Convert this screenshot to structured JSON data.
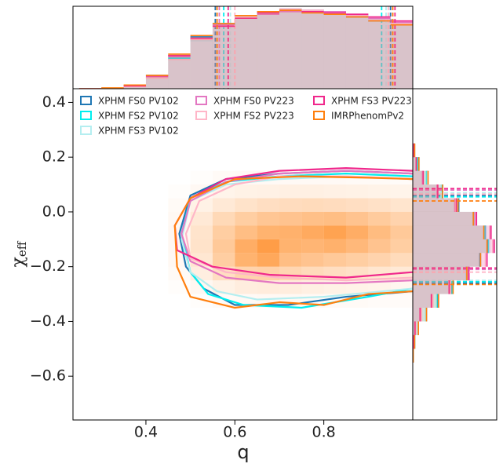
{
  "chart_data": {
    "type": "corner",
    "xlabel": "q",
    "ylabel": {
      "base": "χ",
      "sub": "eff"
    },
    "xlim": [
      0.236,
      1.0
    ],
    "ylim": [
      -0.76,
      0.45
    ],
    "xticks": [
      0.4,
      0.6,
      0.8
    ],
    "yticks": [
      0.4,
      0.2,
      {
        "value": 0,
        "label": "0.0"
      },
      {
        "value": -0.2,
        "label": "−0.2"
      },
      {
        "value": -0.4,
        "label": "−0.4"
      },
      {
        "value": -0.6,
        "label": "−0.6"
      }
    ],
    "top_ylim": [
      0,
      3.1
    ],
    "right_xlim": [
      0,
      5.2
    ],
    "q_bins": [
      0.25,
      0.3,
      0.35,
      0.4,
      0.45,
      0.5,
      0.55,
      0.6,
      0.65,
      0.7,
      0.75,
      0.8,
      0.85,
      0.9,
      0.95,
      1.0
    ],
    "chi_bins": [
      -0.55,
      -0.5,
      -0.45,
      -0.4,
      -0.35,
      -0.3,
      -0.25,
      -0.2,
      -0.15,
      -0.1,
      -0.05,
      0.0,
      0.05,
      0.1,
      0.15,
      0.2,
      0.25
    ],
    "density": {
      "color": "#ff7f0e",
      "q_edges": [
        0.45,
        0.5,
        0.55,
        0.6,
        0.65,
        0.7,
        0.75,
        0.8,
        0.85,
        0.9,
        0.95,
        1.0
      ],
      "chi_edges": [
        0.15,
        0.1,
        0.05,
        0.0,
        -0.05,
        -0.1,
        -0.15,
        -0.2,
        -0.25,
        -0.3,
        -0.35
      ],
      "values": [
        [
          0,
          0.02,
          0.04,
          0.05,
          0.05,
          0.05,
          0.05,
          0.05,
          0.04,
          0.04,
          0.03
        ],
        [
          0.02,
          0.06,
          0.1,
          0.12,
          0.13,
          0.14,
          0.14,
          0.13,
          0.12,
          0.11,
          0.1
        ],
        [
          0.04,
          0.12,
          0.2,
          0.26,
          0.3,
          0.32,
          0.33,
          0.32,
          0.3,
          0.27,
          0.24
        ],
        [
          0.06,
          0.2,
          0.35,
          0.45,
          0.52,
          0.55,
          0.58,
          0.6,
          0.55,
          0.48,
          0.4
        ],
        [
          0.07,
          0.25,
          0.45,
          0.6,
          0.7,
          0.72,
          0.78,
          0.85,
          0.75,
          0.62,
          0.5
        ],
        [
          0.07,
          0.26,
          0.5,
          0.75,
          0.9,
          0.7,
          0.68,
          0.72,
          0.65,
          0.55,
          0.45
        ],
        [
          0.06,
          0.22,
          0.45,
          0.7,
          0.8,
          0.6,
          0.55,
          0.5,
          0.45,
          0.4,
          0.33
        ],
        [
          0.04,
          0.15,
          0.3,
          0.4,
          0.42,
          0.38,
          0.33,
          0.3,
          0.27,
          0.23,
          0.2
        ],
        [
          0.02,
          0.07,
          0.12,
          0.16,
          0.17,
          0.16,
          0.14,
          0.12,
          0.11,
          0.1,
          0.08
        ],
        [
          0,
          0.02,
          0.04,
          0.05,
          0.06,
          0.06,
          0.05,
          0.04,
          0.04,
          0.03,
          0.03
        ]
      ]
    },
    "series": [
      {
        "name": "XPHM FS0 PV102",
        "color": "#1f77b4",
        "contour_q": [
          1.0,
          0.85,
          0.7,
          0.58,
          0.5,
          0.475,
          0.49,
          0.53,
          0.6,
          0.72,
          0.85,
          1.0
        ],
        "contour_chi": [
          0.14,
          0.15,
          0.14,
          0.12,
          0.06,
          -0.08,
          -0.2,
          -0.28,
          -0.34,
          -0.34,
          -0.31,
          -0.29
        ],
        "q_quantiles": [
          0.556,
          0.95
        ],
        "chi_quantiles": [
          -0.26,
          0.06
        ],
        "q_hist": [
          0,
          0.02,
          0.12,
          0.5,
          1.25,
          1.95,
          2.45,
          2.7,
          2.9,
          3.0,
          2.9,
          2.8,
          2.7,
          2.55,
          2.4
        ],
        "chi_hist": [
          0.02,
          0.1,
          0.32,
          0.85,
          1.55,
          2.4,
          3.3,
          4.15,
          4.65,
          4.5,
          3.8,
          2.85,
          1.85,
          0.9,
          0.35,
          0.1
        ]
      },
      {
        "name": "XPHM FS2 PV102",
        "color": "#00eeee",
        "contour_q": [
          1.0,
          0.85,
          0.7,
          0.58,
          0.5,
          0.48,
          0.5,
          0.54,
          0.62,
          0.75,
          0.9,
          1.0
        ],
        "contour_chi": [
          0.13,
          0.14,
          0.13,
          0.11,
          0.05,
          -0.08,
          -0.22,
          -0.3,
          -0.34,
          -0.35,
          -0.31,
          -0.28
        ],
        "q_quantiles": [
          0.575,
          0.93
        ],
        "chi_quantiles": [
          -0.255,
          0.055
        ],
        "q_hist": [
          0,
          0.02,
          0.1,
          0.42,
          1.15,
          1.85,
          2.4,
          2.75,
          2.85,
          2.95,
          2.95,
          2.85,
          2.75,
          2.6,
          2.5
        ],
        "chi_hist": [
          0.02,
          0.12,
          0.3,
          0.8,
          1.5,
          2.45,
          3.35,
          4.2,
          4.7,
          4.45,
          3.75,
          2.8,
          1.8,
          0.85,
          0.3,
          0.1
        ]
      },
      {
        "name": "XPHM FS3 PV102",
        "color": "#b4eef0",
        "contour_q": [
          1.0,
          0.85,
          0.7,
          0.58,
          0.5,
          0.48,
          0.5,
          0.56,
          0.65,
          0.8,
          1.0
        ],
        "contour_chi": [
          0.12,
          0.13,
          0.12,
          0.1,
          0.04,
          -0.1,
          -0.22,
          -0.29,
          -0.32,
          -0.31,
          -0.28
        ],
        "q_quantiles": [
          0.59,
          0.94
        ],
        "chi_quantiles": [
          -0.25,
          0.07
        ],
        "q_hist": [
          0,
          0.01,
          0.08,
          0.4,
          1.1,
          1.8,
          2.35,
          2.7,
          2.85,
          2.95,
          2.95,
          2.9,
          2.8,
          2.65,
          2.5
        ],
        "chi_hist": [
          0.02,
          0.1,
          0.28,
          0.78,
          1.45,
          2.35,
          3.3,
          4.2,
          4.75,
          4.55,
          3.85,
          2.8,
          1.75,
          0.9,
          0.4,
          0.12
        ]
      },
      {
        "name": "XPHM FS0 PV223",
        "color": "#e377c2",
        "contour_q": [
          1.0,
          0.85,
          0.7,
          0.58,
          0.5,
          0.48,
          0.5,
          0.58,
          0.7,
          0.85,
          1.0
        ],
        "contour_chi": [
          0.14,
          0.15,
          0.14,
          0.11,
          0.04,
          -0.08,
          -0.18,
          -0.24,
          -0.26,
          -0.26,
          -0.25
        ],
        "q_quantiles": [
          0.565,
          0.955
        ],
        "chi_quantiles": [
          -0.21,
          0.08
        ],
        "q_hist": [
          0,
          0.02,
          0.1,
          0.45,
          1.2,
          1.9,
          2.4,
          2.65,
          2.8,
          2.9,
          2.95,
          2.9,
          2.8,
          2.65,
          2.5
        ],
        "chi_hist": [
          0.01,
          0.05,
          0.15,
          0.5,
          1.2,
          2.3,
          3.5,
          4.6,
          5.0,
          4.8,
          3.9,
          2.6,
          1.5,
          0.6,
          0.2,
          0.05
        ]
      },
      {
        "name": "XPHM FS2 PV223",
        "color": "#ffb6c8",
        "contour_q": [
          1.0,
          0.85,
          0.7,
          0.6,
          0.52,
          0.49,
          0.5,
          0.58,
          0.7,
          0.85,
          1.0
        ],
        "contour_chi": [
          0.12,
          0.13,
          0.13,
          0.1,
          0.04,
          -0.08,
          -0.17,
          -0.22,
          -0.24,
          -0.25,
          -0.24
        ],
        "q_quantiles": [
          0.6,
          0.945
        ],
        "chi_quantiles": [
          -0.22,
          0.065
        ],
        "q_hist": [
          0,
          0.01,
          0.08,
          0.4,
          1.1,
          1.85,
          2.35,
          2.7,
          2.9,
          3.0,
          2.95,
          2.85,
          2.75,
          2.6,
          2.45
        ],
        "chi_hist": [
          0.01,
          0.06,
          0.18,
          0.55,
          1.25,
          2.35,
          3.45,
          4.5,
          4.95,
          4.75,
          3.85,
          2.65,
          1.55,
          0.65,
          0.22,
          0.06
        ]
      },
      {
        "name": "XPHM FS3 PV223",
        "color": "#f0288c",
        "contour_q": [
          1.0,
          0.85,
          0.7,
          0.58,
          0.5,
          0.465,
          0.47,
          0.55,
          0.68,
          0.85,
          1.0
        ],
        "contour_chi": [
          0.15,
          0.16,
          0.15,
          0.12,
          0.05,
          -0.05,
          -0.14,
          -0.2,
          -0.23,
          -0.24,
          -0.22
        ],
        "q_quantiles": [
          0.585,
          0.96
        ],
        "chi_quantiles": [
          -0.205,
          0.085
        ],
        "q_hist": [
          0,
          0.02,
          0.11,
          0.48,
          1.25,
          1.9,
          2.35,
          2.65,
          2.85,
          2.95,
          2.9,
          2.85,
          2.8,
          2.7,
          2.55
        ],
        "chi_hist": [
          0.01,
          0.04,
          0.14,
          0.45,
          1.15,
          2.25,
          3.45,
          4.6,
          5.05,
          4.85,
          3.95,
          2.7,
          1.55,
          0.65,
          0.22,
          0.06
        ]
      },
      {
        "name": "IMRPhenomPv2",
        "color": "#ff7f0e",
        "contour_q": [
          1.0,
          0.9,
          0.75,
          0.6,
          0.5,
          0.465,
          0.47,
          0.5,
          0.6,
          0.7,
          0.8,
          0.9,
          1.0
        ],
        "contour_chi": [
          0.12,
          0.125,
          0.13,
          0.12,
          0.05,
          -0.05,
          -0.2,
          -0.31,
          -0.35,
          -0.33,
          -0.34,
          -0.3,
          -0.29
        ],
        "q_quantiles": [
          0.56,
          0.955
        ],
        "chi_quantiles": [
          -0.265,
          0.04
        ],
        "q_hist": [
          0,
          0.03,
          0.14,
          0.5,
          1.3,
          2.0,
          2.45,
          2.75,
          2.9,
          2.95,
          2.85,
          2.8,
          2.7,
          2.55,
          2.4
        ],
        "chi_hist": [
          0.03,
          0.12,
          0.35,
          0.85,
          1.6,
          2.5,
          3.35,
          4.2,
          4.6,
          4.4,
          3.75,
          2.8,
          1.85,
          0.95,
          0.38,
          0.12
        ]
      }
    ]
  }
}
